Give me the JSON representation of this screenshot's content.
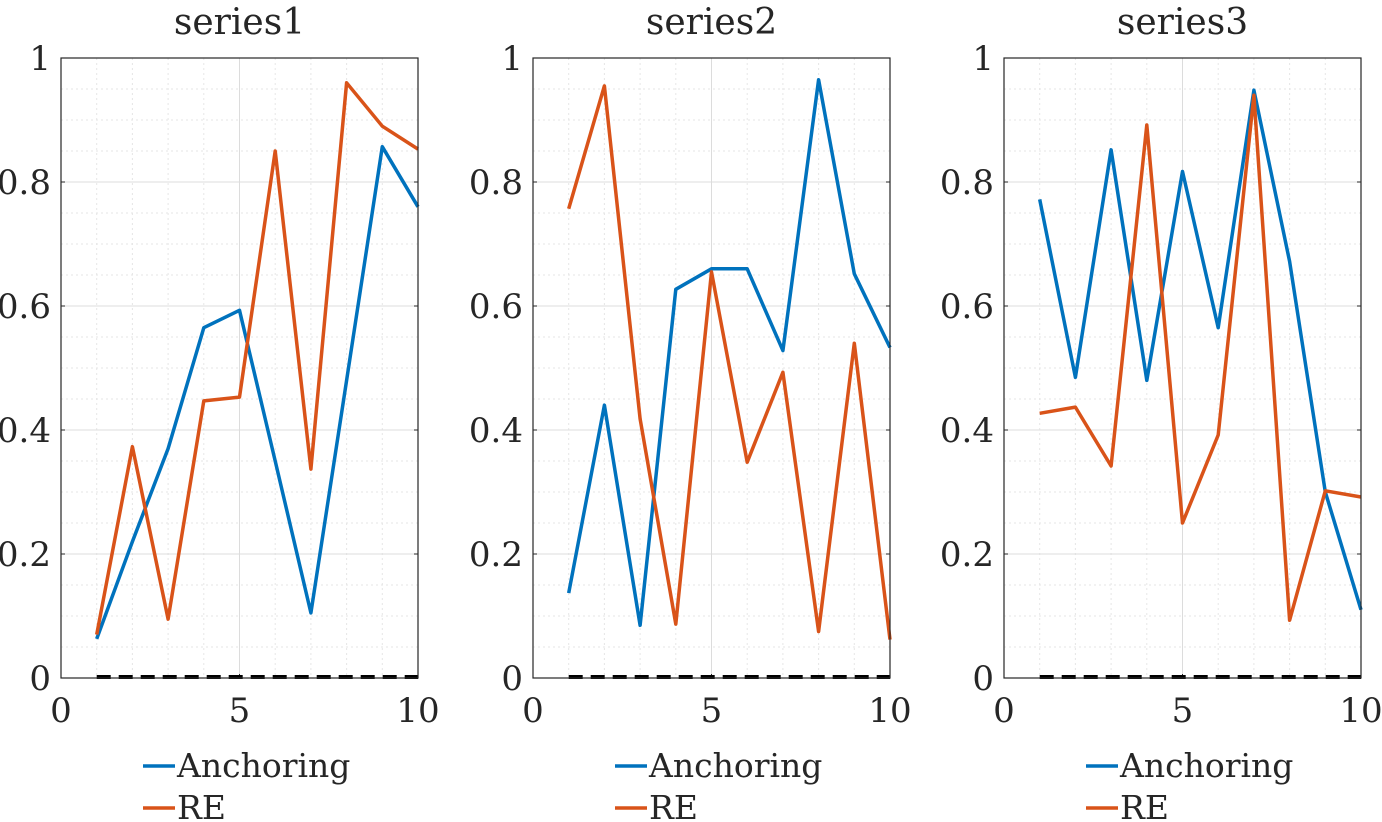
{
  "chart_data": [
    {
      "type": "line",
      "title": "series1",
      "x": [
        1,
        2,
        3,
        4,
        5,
        6,
        7,
        8,
        9,
        10
      ],
      "xlim": [
        0,
        10
      ],
      "ylim": [
        0,
        1
      ],
      "xticks": [
        "0",
        "5",
        "10"
      ],
      "yticks": [
        "0",
        "0.2",
        "0.4",
        "0.6",
        "0.8",
        "1"
      ],
      "grid": true,
      "baseline_style": "black dashed line at y = 0",
      "legend_position": "below",
      "series": [
        {
          "name": "Anchoring",
          "color": "#0072BD",
          "values": [
            0.063,
            0.22,
            0.37,
            0.565,
            0.593,
            0.35,
            0.105,
            0.48,
            0.857,
            0.76
          ]
        },
        {
          "name": "RE",
          "color": "#D95319",
          "values": [
            0.07,
            0.373,
            0.095,
            0.447,
            0.453,
            0.85,
            0.337,
            0.96,
            0.89,
            0.853
          ]
        }
      ]
    },
    {
      "type": "line",
      "title": "series2",
      "x": [
        1,
        2,
        3,
        4,
        5,
        6,
        7,
        8,
        9,
        10
      ],
      "xlim": [
        0,
        10
      ],
      "ylim": [
        0,
        1
      ],
      "xticks": [
        "0",
        "5",
        "10"
      ],
      "yticks": [
        "0",
        "0.2",
        "0.4",
        "0.6",
        "0.8",
        "1"
      ],
      "grid": true,
      "baseline_style": "black dashed line at y = 0",
      "legend_position": "below",
      "series": [
        {
          "name": "Anchoring",
          "color": "#0072BD",
          "values": [
            0.137,
            0.44,
            0.085,
            0.627,
            0.66,
            0.66,
            0.528,
            0.965,
            0.652,
            0.533
          ]
        },
        {
          "name": "RE",
          "color": "#D95319",
          "values": [
            0.757,
            0.955,
            0.418,
            0.087,
            0.655,
            0.348,
            0.493,
            0.075,
            0.54,
            0.062
          ]
        }
      ]
    },
    {
      "type": "line",
      "title": "series3",
      "x": [
        1,
        2,
        3,
        4,
        5,
        6,
        7,
        8,
        9,
        10
      ],
      "xlim": [
        0,
        10
      ],
      "ylim": [
        0,
        1
      ],
      "xticks": [
        "0",
        "5",
        "10"
      ],
      "yticks": [
        "0",
        "0.2",
        "0.4",
        "0.6",
        "0.8",
        "1"
      ],
      "grid": true,
      "baseline_style": "black dashed line at y = 0",
      "legend_position": "below",
      "series": [
        {
          "name": "Anchoring",
          "color": "#0072BD",
          "values": [
            0.772,
            0.485,
            0.852,
            0.48,
            0.817,
            0.565,
            0.948,
            0.672,
            0.3,
            0.11
          ]
        },
        {
          "name": "RE",
          "color": "#D95319",
          "values": [
            0.427,
            0.437,
            0.342,
            0.892,
            0.25,
            0.392,
            0.94,
            0.093,
            0.302,
            0.292
          ]
        }
      ]
    }
  ]
}
